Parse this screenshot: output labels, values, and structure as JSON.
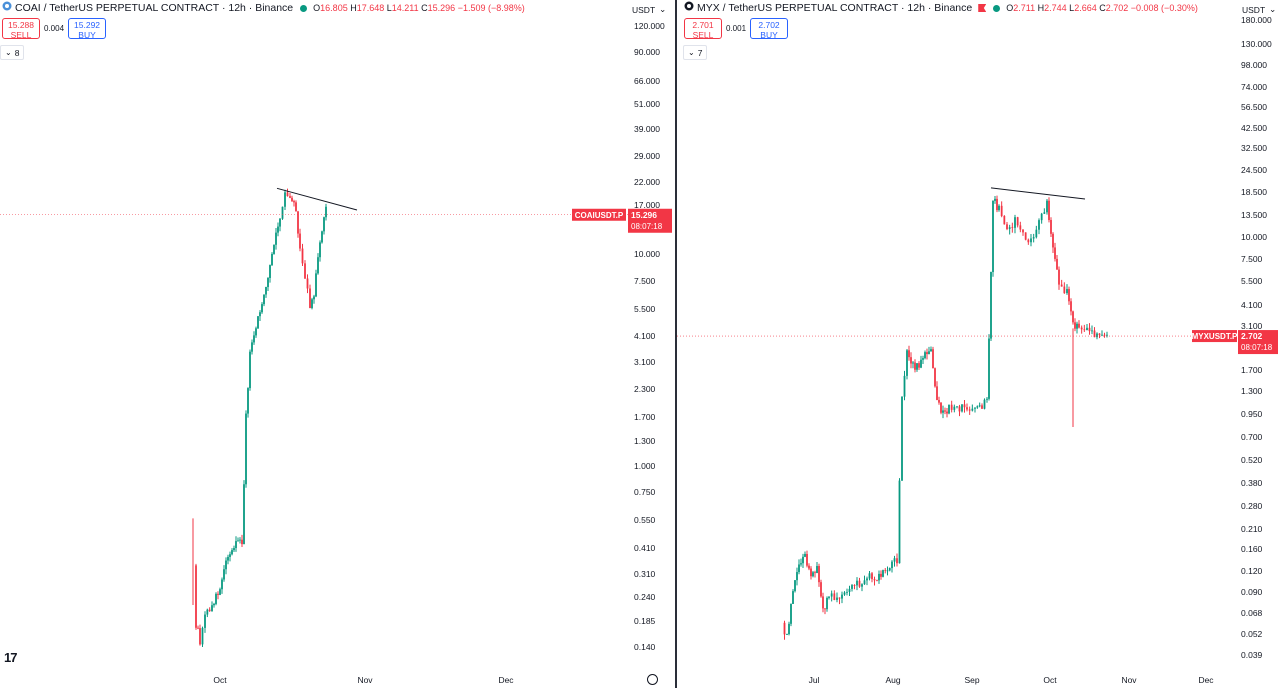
{
  "colors": {
    "up": "#089981",
    "down": "#f23645",
    "line": "#131722",
    "axis": "#131722",
    "buy": "#2962ff"
  },
  "left": {
    "icon": "coai-logo-icon",
    "title": "COAI / TetherUS PERPETUAL CONTRACT · 12h · Binance",
    "ohlc": {
      "o_label": "O",
      "o": "16.805",
      "h_label": "H",
      "h": "17.648",
      "l_label": "L",
      "l": "14.211",
      "c_label": "C",
      "c": "15.296",
      "chg": "−1.509 (−8.98%)"
    },
    "sell_price": "15.288",
    "sell_label": "SELL",
    "spread": "0.004",
    "buy_price": "15.292",
    "buy_label": "BUY",
    "indicator": "8",
    "currency": "USDT",
    "symbol_tag": "COAIUSDT.P",
    "price_tag": "15.296",
    "timer": "08:07:18",
    "x_labels": [
      "Oct",
      "Nov",
      "Dec"
    ],
    "y_labels": [
      "120.000",
      "90.000",
      "66.000",
      "51.000",
      "39.000",
      "29.000",
      "22.000",
      "17.000",
      "10.000",
      "7.500",
      "5.500",
      "4.100",
      "3.100",
      "2.300",
      "1.700",
      "1.300",
      "1.000",
      "0.750",
      "0.550",
      "0.410",
      "0.310",
      "0.240",
      "0.185",
      "0.140"
    ]
  },
  "right": {
    "icon": "myx-logo-icon",
    "title": "MYX / TetherUS PERPETUAL CONTRACT · 12h · Binance",
    "ohlc": {
      "o_label": "O",
      "o": "2.711",
      "h_label": "H",
      "h": "2.744",
      "l_label": "L",
      "l": "2.664",
      "c_label": "C",
      "c": "2.702",
      "chg": "−0.008 (−0.30%)"
    },
    "sell_price": "2.701",
    "sell_label": "SELL",
    "spread": "0.001",
    "buy_price": "2.702",
    "buy_label": "BUY",
    "indicator": "7",
    "currency": "USDT",
    "symbol_tag": "MYXUSDT.P",
    "price_tag": "2.702",
    "timer": "08:07:18",
    "x_labels": [
      "Jul",
      "Aug",
      "Sep",
      "Oct",
      "Nov",
      "Dec"
    ],
    "y_labels": [
      "180.000",
      "130.000",
      "98.000",
      "74.000",
      "56.500",
      "42.500",
      "32.500",
      "24.500",
      "18.500",
      "13.500",
      "10.000",
      "7.500",
      "5.500",
      "4.100",
      "3.100",
      "1.700",
      "1.300",
      "0.950",
      "0.700",
      "0.520",
      "0.380",
      "0.280",
      "0.210",
      "0.160",
      "0.120",
      "0.090",
      "0.068",
      "0.052",
      "0.039"
    ]
  }
}
